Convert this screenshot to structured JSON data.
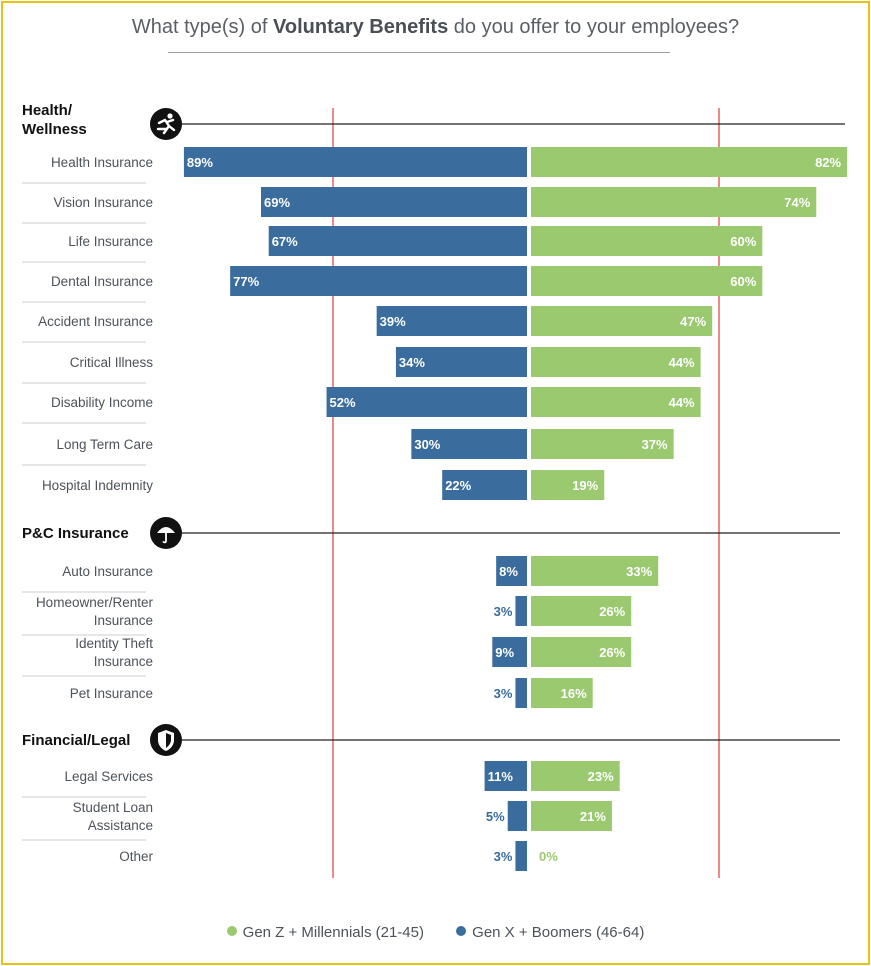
{
  "title": {
    "prefix": "What type(s) of ",
    "bold": "Voluntary Benefits",
    "suffix": " do you offer to your employees?"
  },
  "colors": {
    "genz": "#9ac96f",
    "genx": "#3a6c9e",
    "ref_line": "#e03c3c"
  },
  "chart_data": {
    "type": "bar",
    "orientation": "horizontal-diverging",
    "value_format": "percent",
    "xlim": [
      0,
      100
    ],
    "legend_position": "bottom-center",
    "series": [
      {
        "name": "Gen Z  + Millennials (21-45)",
        "color": "#9ac96f",
        "side": "right"
      },
      {
        "name": "Gen X  +  Boomers (46-64)",
        "color": "#3a6c9e",
        "side": "left"
      }
    ],
    "sections": [
      {
        "name": "Health/ Wellness",
        "label_lines": [
          "Health/",
          "Wellness"
        ],
        "icon": "running-person-icon",
        "items": [
          {
            "label_lines": [
              "Health Insurance"
            ],
            "genx": 89,
            "genz": 82
          },
          {
            "label_lines": [
              "Vision Insurance"
            ],
            "genx": 69,
            "genz": 74
          },
          {
            "label_lines": [
              "Life Insurance"
            ],
            "genx": 67,
            "genz": 60
          },
          {
            "label_lines": [
              "Dental Insurance"
            ],
            "genx": 77,
            "genz": 60
          },
          {
            "label_lines": [
              "Accident Insurance"
            ],
            "genx": 39,
            "genz": 47
          },
          {
            "label_lines": [
              "Critical Illness"
            ],
            "genx": 34,
            "genz": 44
          },
          {
            "label_lines": [
              "Disability Income"
            ],
            "genx": 52,
            "genz": 44
          },
          {
            "label_lines": [
              "Long Term Care"
            ],
            "genx": 30,
            "genz": 37
          },
          {
            "label_lines": [
              "Hospital Indemnity"
            ],
            "genx": 22,
            "genz": 19
          }
        ]
      },
      {
        "name": "P&C Insurance",
        "label_lines": [
          "P&C Insurance"
        ],
        "icon": "umbrella-icon",
        "items": [
          {
            "label_lines": [
              "Auto Insurance"
            ],
            "genx": 8,
            "genz": 33
          },
          {
            "label_lines": [
              "Homeowner/Renter",
              "Insurance"
            ],
            "genx": 3,
            "genz": 26
          },
          {
            "label_lines": [
              "Identity Theft",
              "Insurance"
            ],
            "genx": 9,
            "genz": 26
          },
          {
            "label_lines": [
              "Pet Insurance"
            ],
            "genx": 3,
            "genz": 16
          }
        ]
      },
      {
        "name": "Financial/Legal",
        "label_lines": [
          "Financial/Legal"
        ],
        "icon": "shield-icon",
        "items": [
          {
            "label_lines": [
              "Legal Services"
            ],
            "genx": 11,
            "genz": 23
          },
          {
            "label_lines": [
              "Student Loan",
              "Assistance"
            ],
            "genx": 5,
            "genz": 21
          },
          {
            "label_lines": [
              "Other"
            ],
            "genx": 3,
            "genz": 0
          }
        ]
      }
    ]
  }
}
